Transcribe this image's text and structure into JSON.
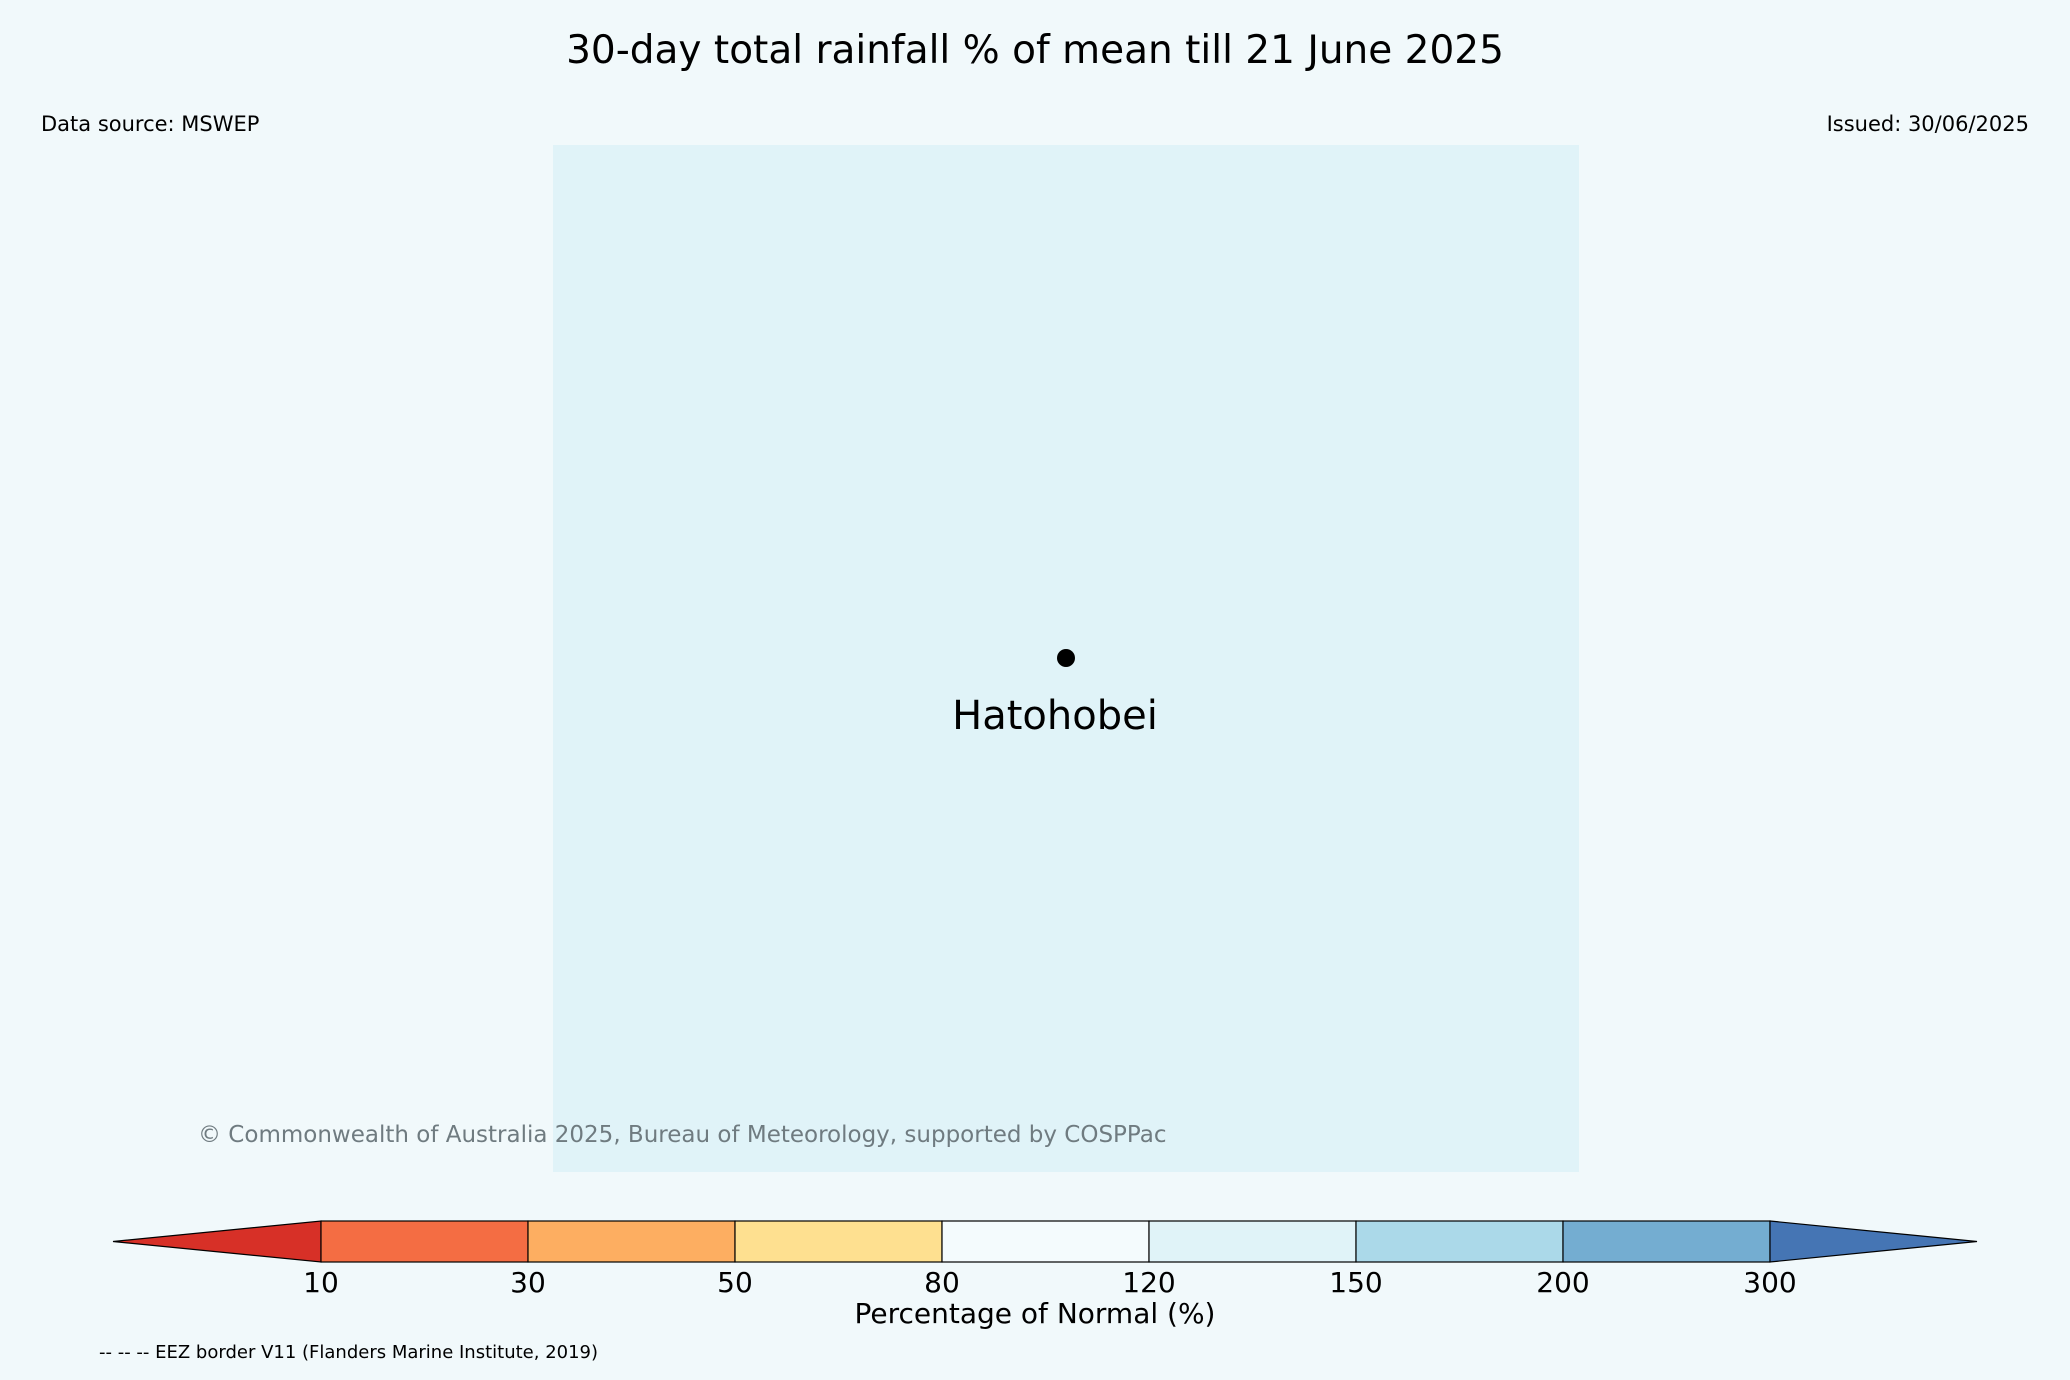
{
  "title": "30-day total rainfall % of mean till 21 June 2025",
  "data_source": "Data source: MSWEP",
  "issued": "Issued: 30/06/2025",
  "map": {
    "background_color": "#e0f3f8",
    "place": {
      "name": "Hatohobei",
      "marker": "point-marker-icon"
    }
  },
  "copyright": "© Commonwealth of Australia 2025, Bureau of Meteorology, supported by COSPPac",
  "colorbar": {
    "title": "Percentage of Normal (%)",
    "under_color": "#d73027",
    "over_color": "#4575b4",
    "ticks": [
      "10",
      "30",
      "50",
      "80",
      "120",
      "150",
      "200",
      "300"
    ],
    "bins": [
      {
        "from": "10",
        "to": "30",
        "color": "#f46d43"
      },
      {
        "from": "30",
        "to": "50",
        "color": "#fdae61"
      },
      {
        "from": "50",
        "to": "80",
        "color": "#fee090"
      },
      {
        "from": "80",
        "to": "120",
        "color": "#f4fbfd"
      },
      {
        "from": "120",
        "to": "150",
        "color": "#e0f3f8"
      },
      {
        "from": "150",
        "to": "200",
        "color": "#abd9e9"
      },
      {
        "from": "200",
        "to": "300",
        "color": "#74add1"
      }
    ]
  },
  "footnote": "-- -- -- EEZ border V11 (Flanders Marine Institute, 2019)"
}
